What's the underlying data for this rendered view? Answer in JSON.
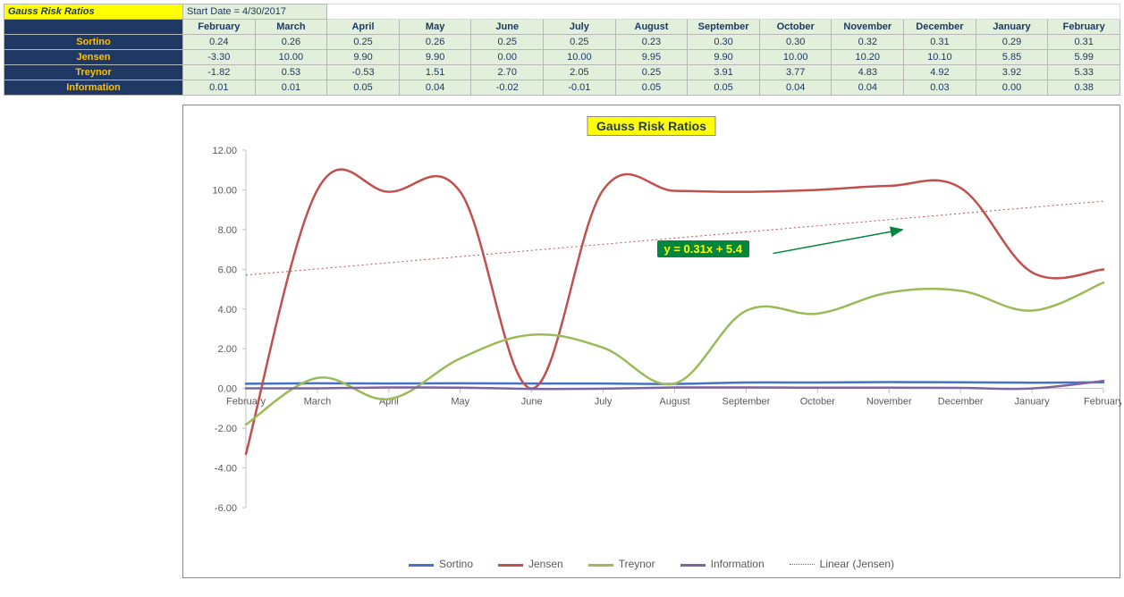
{
  "title": "Gauss Risk Ratios",
  "start_date_label": "Start Date = 4/30/2017",
  "months": [
    "February",
    "March",
    "April",
    "May",
    "June",
    "July",
    "August",
    "September",
    "October",
    "November",
    "December",
    "January",
    "February"
  ],
  "rows": [
    {
      "label": "Sortino",
      "values": [
        0.24,
        0.26,
        0.25,
        0.26,
        0.25,
        0.25,
        0.23,
        0.3,
        0.3,
        0.32,
        0.31,
        0.29,
        0.31
      ]
    },
    {
      "label": "Jensen",
      "values": [
        -3.3,
        10.0,
        9.9,
        9.9,
        0.0,
        10.0,
        9.95,
        9.9,
        10.0,
        10.2,
        10.1,
        5.85,
        5.99
      ]
    },
    {
      "label": "Treynor",
      "values": [
        -1.82,
        0.53,
        -0.53,
        1.51,
        2.7,
        2.05,
        0.25,
        3.91,
        3.77,
        4.83,
        4.92,
        3.92,
        5.33
      ]
    },
    {
      "label": "Information",
      "values": [
        0.01,
        0.01,
        0.05,
        0.04,
        -0.02,
        -0.01,
        0.05,
        0.05,
        0.04,
        0.04,
        0.03,
        0.0,
        0.38
      ]
    }
  ],
  "chart": {
    "title": "Gauss Risk Ratios",
    "series": [
      {
        "name": "Sortino",
        "color": "#4472c4",
        "width": 2.5,
        "dash": "",
        "row": 0
      },
      {
        "name": "Jensen",
        "color": "#c0504d",
        "width": 2.5,
        "dash": "",
        "row": 1
      },
      {
        "name": "Treynor",
        "color": "#9bbb59",
        "width": 2.5,
        "dash": "",
        "row": 2
      },
      {
        "name": "Information",
        "color": "#8064a2",
        "width": 2.5,
        "dash": "",
        "row": 3
      }
    ],
    "trend": {
      "name": "Linear (Jensen)",
      "equation": "y = 0.31x + 5.4",
      "slope": 0.31,
      "intercept": 5.4,
      "color": "#c0504d",
      "dash": "2,3",
      "width": 1
    },
    "y_min": -6,
    "y_max": 12,
    "y_step": 2,
    "axis_color": "#bfbfbf",
    "label_color": "#595959",
    "label_fontsize": 11,
    "background": "#ffffff",
    "arrow_color": "#00863d"
  }
}
